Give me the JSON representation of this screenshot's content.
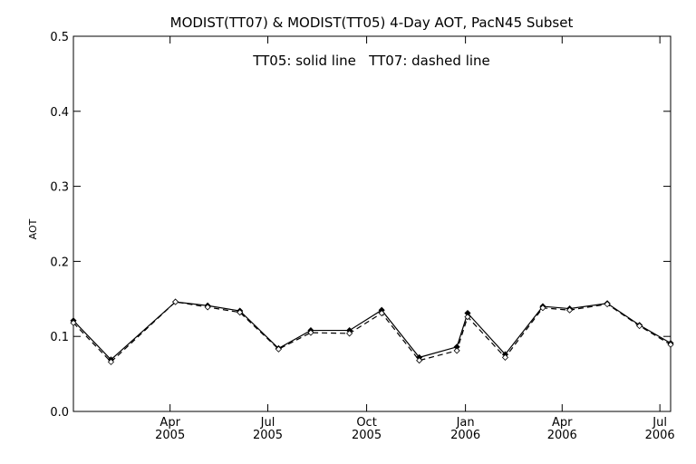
{
  "chart_data": {
    "type": "line",
    "title": "MODIST(TT07) & MODIST(TT05) 4-Day AOT, PacN45 Subset",
    "annotation": "TT05: solid line   TT07: dashed line",
    "ylabel": "AOT",
    "xlabel": "",
    "ylim": [
      0.0,
      0.5
    ],
    "xlim": [
      "2005-01-01",
      "2006-07-11"
    ],
    "grid": false,
    "yticks": [
      {
        "value": 0.0,
        "label": "0.0"
      },
      {
        "value": 0.1,
        "label": "0.1"
      },
      {
        "value": 0.2,
        "label": "0.2"
      },
      {
        "value": 0.3,
        "label": "0.3"
      },
      {
        "value": 0.4,
        "label": "0.4"
      },
      {
        "value": 0.5,
        "label": "0.5"
      }
    ],
    "xticks": [
      {
        "date": "2005-04-01",
        "month": "Apr",
        "year": "2005"
      },
      {
        "date": "2005-07-01",
        "month": "Jul",
        "year": "2005"
      },
      {
        "date": "2005-10-01",
        "month": "Oct",
        "year": "2005"
      },
      {
        "date": "2006-01-01",
        "month": "Jan",
        "year": "2006"
      },
      {
        "date": "2006-04-01",
        "month": "Apr",
        "year": "2006"
      },
      {
        "date": "2006-07-01",
        "month": "Jul",
        "year": "2006"
      }
    ],
    "series": [
      {
        "name": "TT05",
        "style": "solid",
        "color": "#000000",
        "x": [
          "2005-01-01",
          "2005-02-05",
          "2005-04-06",
          "2005-05-06",
          "2005-06-05",
          "2005-07-11",
          "2005-08-10",
          "2005-09-15",
          "2005-10-15",
          "2005-11-19",
          "2005-12-24",
          "2006-01-03",
          "2006-02-07",
          "2006-03-14",
          "2006-04-08",
          "2006-05-13",
          "2006-06-12",
          "2006-07-11"
        ],
        "values": [
          0.121,
          0.069,
          0.146,
          0.141,
          0.134,
          0.084,
          0.108,
          0.108,
          0.135,
          0.072,
          0.086,
          0.131,
          0.076,
          0.14,
          0.137,
          0.144,
          0.115,
          0.091
        ]
      },
      {
        "name": "TT07",
        "style": "dashed",
        "color": "#000000",
        "x": [
          "2005-01-01",
          "2005-02-05",
          "2005-04-06",
          "2005-05-06",
          "2005-06-05",
          "2005-07-11",
          "2005-08-10",
          "2005-09-15",
          "2005-10-15",
          "2005-11-19",
          "2005-12-24",
          "2006-01-03",
          "2006-02-07",
          "2006-03-14",
          "2006-04-08",
          "2006-05-13",
          "2006-06-12",
          "2006-07-11"
        ],
        "values": [
          0.118,
          0.066,
          0.146,
          0.139,
          0.132,
          0.083,
          0.105,
          0.104,
          0.131,
          0.068,
          0.081,
          0.126,
          0.072,
          0.138,
          0.135,
          0.143,
          0.114,
          0.089
        ]
      }
    ]
  }
}
